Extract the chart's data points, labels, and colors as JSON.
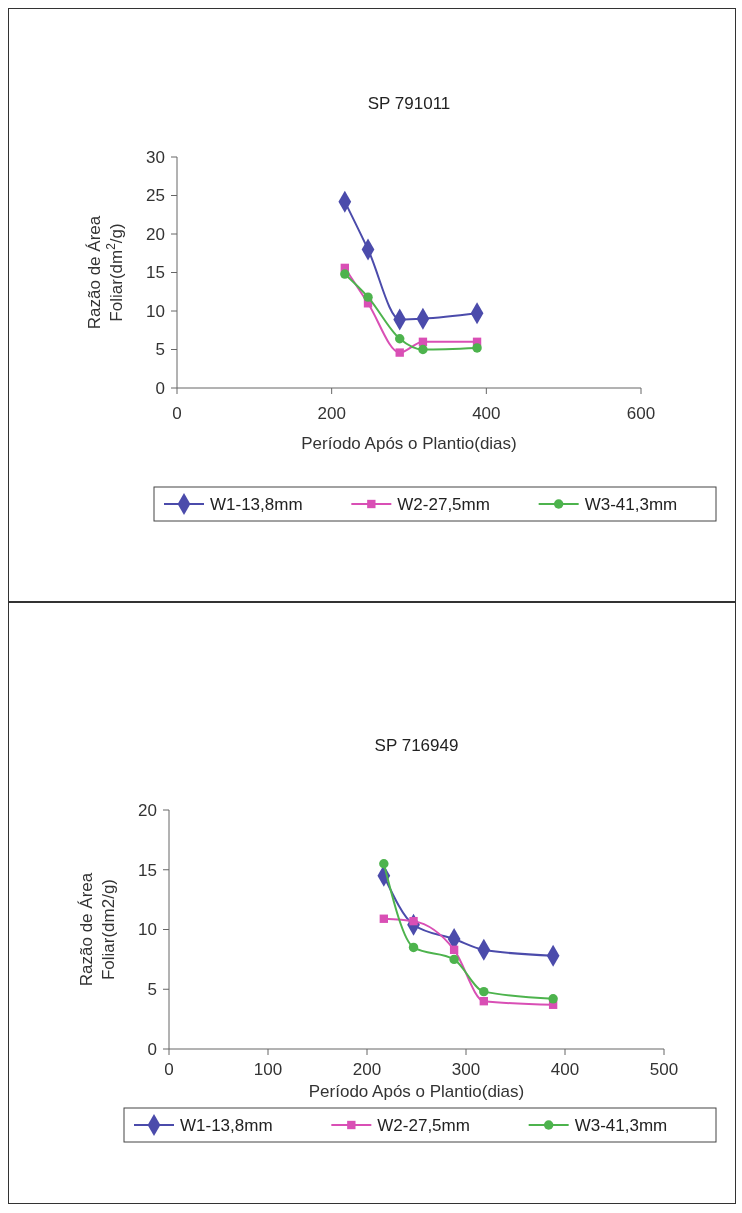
{
  "chart_data": [
    {
      "type": "line",
      "title": "SP 791011",
      "xlabel": "Período Após o Plantio(dias)",
      "ylabel": "Razão de Área\nFoliar(dm$^{2}$/g)",
      "x": [
        217,
        247,
        288,
        318,
        388
      ],
      "xlim": [
        0,
        600
      ],
      "xticks": [
        0,
        200,
        400,
        600
      ],
      "ylim": [
        0,
        30
      ],
      "yticks": [
        0,
        5,
        10,
        15,
        20,
        25,
        30
      ],
      "legend": "bottom",
      "grid": false,
      "series": [
        {
          "name": "W1-13,8mm",
          "color": "#4b4bab",
          "marker": "diamond",
          "values": [
            24.2,
            18,
            8.9,
            9,
            9.7
          ]
        },
        {
          "name": "W2-27,5mm",
          "color": "#d94fb5",
          "marker": "square",
          "values": [
            15.6,
            11,
            4.6,
            6,
            6
          ]
        },
        {
          "name": "W3-41,3mm",
          "color": "#4db34d",
          "marker": "circle",
          "values": [
            14.8,
            11.8,
            6.4,
            5,
            5.2
          ]
        }
      ]
    },
    {
      "type": "line",
      "title": "SP 716949",
      "xlabel": "Período Após o Plantio(dias)",
      "ylabel": "Razão de Área\nFoliar(dm2/g)",
      "x": [
        217,
        247,
        288,
        318,
        388
      ],
      "xlim": [
        0,
        500
      ],
      "xticks": [
        0,
        100,
        200,
        300,
        400,
        500
      ],
      "ylim": [
        0,
        20
      ],
      "yticks": [
        0,
        5,
        10,
        15,
        20
      ],
      "legend": "bottom",
      "grid": false,
      "series": [
        {
          "name": "W1-13,8mm",
          "color": "#4b4bab",
          "marker": "diamond",
          "values": [
            14.5,
            10.4,
            9.2,
            8.3,
            7.8
          ]
        },
        {
          "name": "W2-27,5mm",
          "color": "#d94fb5",
          "marker": "square",
          "values": [
            10.9,
            10.7,
            8.3,
            4,
            3.7
          ]
        },
        {
          "name": "W3-41,3mm",
          "color": "#4db34d",
          "marker": "circle",
          "values": [
            15.5,
            8.5,
            7.5,
            4.8,
            4.2
          ]
        }
      ]
    }
  ]
}
